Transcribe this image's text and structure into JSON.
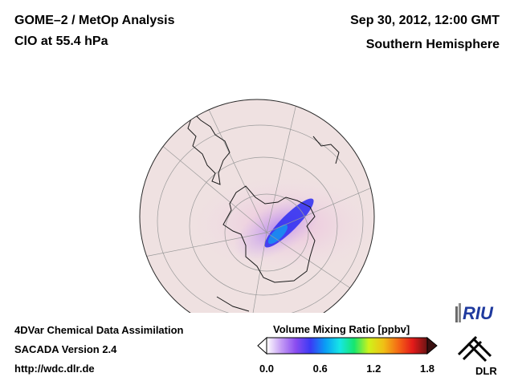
{
  "header": {
    "title_line1": "GOME–2 / MetOp Analysis",
    "title_line2": "ClO at 55.4 hPa",
    "datetime": "Sep 30, 2012, 12:00 GMT",
    "hemisphere": "Southern Hemisphere"
  },
  "footer": {
    "line1": "4DVar Chemical Data Assimilation",
    "line2": "SACADA Version 2.4",
    "line3": "http://wdc.dlr.de"
  },
  "colorbar": {
    "title": "Volume Mixing Ratio [ppbv]",
    "ticks": [
      "0.0",
      "0.6",
      "1.2",
      "1.8"
    ],
    "min": 0.0,
    "max": 1.8,
    "colors": [
      "#ffffff",
      "#c49cf4",
      "#8a4cf0",
      "#3a3af5",
      "#0a9cf5",
      "#16e6e6",
      "#16e66e",
      "#cff21a",
      "#f0c015",
      "#f56a15",
      "#e41a1a",
      "#6a1414"
    ]
  },
  "logos": {
    "riu": "RIU",
    "dlr": "DLR"
  }
}
